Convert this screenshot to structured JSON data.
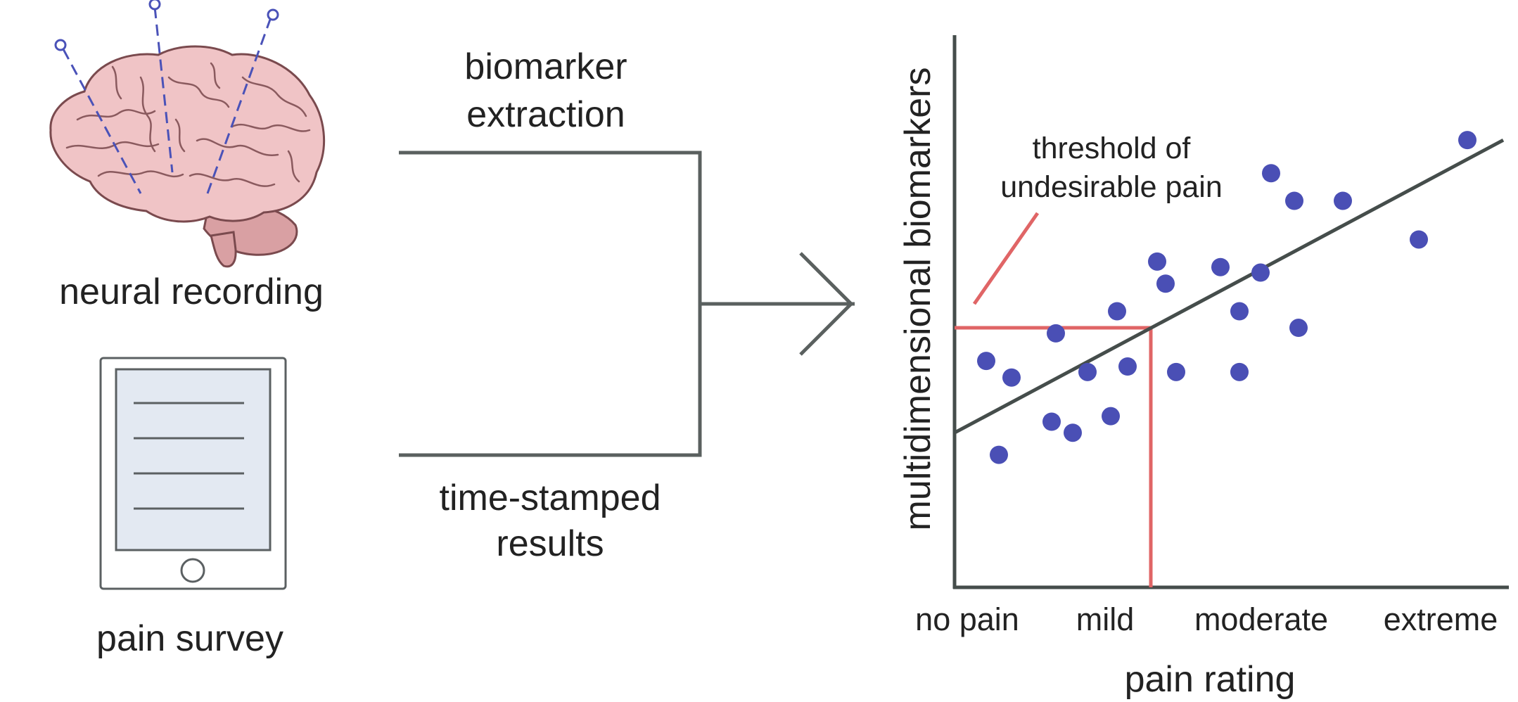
{
  "sources": {
    "neural_label": "neural recording",
    "survey_label": "pain survey"
  },
  "flow": {
    "top_label": [
      "biomarker",
      "extraction"
    ],
    "bottom_label": [
      "time-stamped",
      "results"
    ]
  },
  "chart": {
    "ylabel": "multidimensional biomarkers",
    "xlabel": "pain rating",
    "threshold_label": [
      "threshold of",
      "undesirable pain"
    ]
  },
  "colors": {
    "brain_fill": "#f0c4c6",
    "brain_stroke": "#7a4a4e",
    "electrode": "#4a52b8",
    "dot": "#4a4fb5",
    "line": "#454d4b",
    "threshold": "#e06566",
    "tablet_screen": "#e3e9f2"
  },
  "chart_data": {
    "type": "scatter",
    "xlabel": "pain rating",
    "ylabel": "multidimensional biomarkers",
    "x_tick_labels": [
      "no pain",
      "mild",
      "moderate",
      "extreme"
    ],
    "x_tick_positions": [
      0.5,
      2.1,
      4.2,
      6.3
    ],
    "xlim": [
      0,
      7
    ],
    "ylim": [
      0,
      10
    ],
    "points": [
      {
        "x": 0.15,
        "y": 4.1
      },
      {
        "x": 0.27,
        "y": 3.8
      },
      {
        "x": 0.21,
        "y": 2.4
      },
      {
        "x": 0.48,
        "y": 4.6
      },
      {
        "x": 0.46,
        "y": 3.0
      },
      {
        "x": 0.56,
        "y": 2.8
      },
      {
        "x": 0.63,
        "y": 3.9
      },
      {
        "x": 0.74,
        "y": 3.1
      },
      {
        "x": 0.77,
        "y": 5.0
      },
      {
        "x": 0.82,
        "y": 4.0
      },
      {
        "x": 0.96,
        "y": 5.9
      },
      {
        "x": 1.0,
        "y": 5.5
      },
      {
        "x": 1.05,
        "y": 3.9
      },
      {
        "x": 1.26,
        "y": 5.8
      },
      {
        "x": 1.35,
        "y": 5.0
      },
      {
        "x": 1.35,
        "y": 3.9
      },
      {
        "x": 1.45,
        "y": 5.7
      },
      {
        "x": 1.5,
        "y": 7.5
      },
      {
        "x": 1.61,
        "y": 7.0
      },
      {
        "x": 1.63,
        "y": 4.7
      },
      {
        "x": 1.84,
        "y": 7.0
      },
      {
        "x": 2.2,
        "y": 6.3
      },
      {
        "x": 2.43,
        "y": 8.1
      }
    ],
    "trend_line": [
      {
        "x": 0,
        "y": 2.8
      },
      {
        "x": 2.6,
        "y": 8.1
      }
    ],
    "threshold": {
      "x": 0.93,
      "y": 4.7
    }
  }
}
